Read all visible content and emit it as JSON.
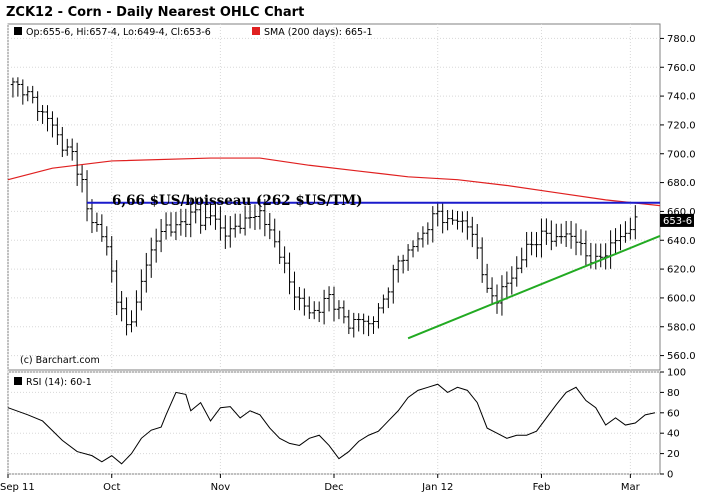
{
  "chart_data": [
    {
      "type": "ohlc",
      "title": "ZCK12 - Corn - Daily Nearest OHLC Chart",
      "legend": {
        "ohlc_label": "Op:655-6, Hi:657-4, Lo:649-4, Cl:653-6",
        "sma_label": "SMA (200 days): 665-1",
        "ohlc_color": "#000000",
        "sma_color": "#e02020"
      },
      "last_price_label": "653-6",
      "watermark": "(c) Barchart.com",
      "annotation": "6,66 $US/boisseau (262 $US/TM)",
      "y_ticks": [
        560,
        580,
        600,
        620,
        640,
        660,
        680,
        700,
        720,
        740,
        760,
        780
      ],
      "ylim": [
        550,
        790
      ],
      "x_tick_labels": [
        "Sep 11",
        "Oct",
        "Nov",
        "Dec",
        "Jan 12",
        "Feb",
        "Mar"
      ],
      "x_tick_days": [
        -1,
        20,
        42,
        65,
        86,
        107,
        125
      ],
      "xlim": [
        -1,
        131
      ],
      "closes": [
        [
          0,
          748
        ],
        [
          2,
          745
        ],
        [
          4,
          737
        ],
        [
          6,
          728
        ],
        [
          8,
          720
        ],
        [
          10,
          705
        ],
        [
          12,
          700
        ],
        [
          14,
          680
        ],
        [
          15,
          660
        ],
        [
          17,
          650
        ],
        [
          19,
          635
        ],
        [
          20,
          618
        ],
        [
          21,
          600
        ],
        [
          23,
          580
        ],
        [
          25,
          595
        ],
        [
          27,
          625
        ],
        [
          29,
          640
        ],
        [
          31,
          650
        ],
        [
          33,
          648
        ],
        [
          35,
          655
        ],
        [
          37,
          660
        ],
        [
          38,
          652
        ],
        [
          40,
          658
        ],
        [
          42,
          648
        ],
        [
          44,
          645
        ],
        [
          46,
          652
        ],
        [
          48,
          655
        ],
        [
          50,
          660
        ],
        [
          52,
          645
        ],
        [
          54,
          632
        ],
        [
          56,
          610
        ],
        [
          58,
          598
        ],
        [
          60,
          590
        ],
        [
          62,
          592
        ],
        [
          64,
          602
        ],
        [
          66,
          590
        ],
        [
          68,
          582
        ],
        [
          70,
          585
        ],
        [
          72,
          582
        ],
        [
          74,
          590
        ],
        [
          76,
          608
        ],
        [
          78,
          625
        ],
        [
          80,
          632
        ],
        [
          82,
          640
        ],
        [
          84,
          650
        ],
        [
          86,
          660
        ],
        [
          88,
          652
        ],
        [
          90,
          655
        ],
        [
          92,
          650
        ],
        [
          94,
          635
        ],
        [
          96,
          603
        ],
        [
          98,
          600
        ],
        [
          100,
          610
        ],
        [
          102,
          620
        ],
        [
          104,
          635
        ],
        [
          106,
          640
        ],
        [
          108,
          645
        ],
        [
          110,
          640
        ],
        [
          112,
          645
        ],
        [
          114,
          640
        ],
        [
          116,
          630
        ],
        [
          118,
          625
        ],
        [
          120,
          632
        ],
        [
          122,
          640
        ],
        [
          124,
          645
        ],
        [
          126,
          653
        ]
      ],
      "sma": {
        "name": "SMA (200 days)",
        "points": [
          [
            -1,
            682
          ],
          [
            8,
            690
          ],
          [
            20,
            695
          ],
          [
            40,
            697
          ],
          [
            50,
            697
          ],
          [
            60,
            692
          ],
          [
            70,
            688
          ],
          [
            80,
            684
          ],
          [
            90,
            682
          ],
          [
            100,
            678
          ],
          [
            110,
            673
          ],
          [
            120,
            668
          ],
          [
            131,
            664
          ]
        ]
      },
      "resistance_line": {
        "value": 666,
        "x_range": [
          15,
          131
        ],
        "color": "#1a1acc"
      },
      "trend_line": {
        "points": [
          [
            80,
            572
          ],
          [
            131,
            643
          ]
        ],
        "color": "#22aa22"
      }
    },
    {
      "type": "line",
      "title": "RSI (14): 60-1",
      "y_ticks": [
        0,
        20,
        40,
        60,
        80,
        100
      ],
      "ylim": [
        0,
        100
      ],
      "series": [
        {
          "name": "RSI (14)",
          "color": "#000000",
          "points": [
            [
              -1,
              65
            ],
            [
              3,
              58
            ],
            [
              6,
              52
            ],
            [
              10,
              33
            ],
            [
              13,
              22
            ],
            [
              16,
              18
            ],
            [
              18,
              12
            ],
            [
              20,
              18
            ],
            [
              22,
              10
            ],
            [
              24,
              20
            ],
            [
              26,
              35
            ],
            [
              28,
              43
            ],
            [
              30,
              46
            ],
            [
              31,
              58
            ],
            [
              33,
              80
            ],
            [
              35,
              78
            ],
            [
              36,
              62
            ],
            [
              38,
              70
            ],
            [
              40,
              52
            ],
            [
              42,
              65
            ],
            [
              44,
              66
            ],
            [
              46,
              55
            ],
            [
              48,
              62
            ],
            [
              50,
              58
            ],
            [
              52,
              45
            ],
            [
              54,
              35
            ],
            [
              56,
              30
            ],
            [
              58,
              28
            ],
            [
              60,
              35
            ],
            [
              62,
              38
            ],
            [
              64,
              28
            ],
            [
              66,
              15
            ],
            [
              68,
              22
            ],
            [
              70,
              32
            ],
            [
              72,
              38
            ],
            [
              74,
              42
            ],
            [
              76,
              52
            ],
            [
              78,
              62
            ],
            [
              80,
              75
            ],
            [
              82,
              82
            ],
            [
              84,
              85
            ],
            [
              86,
              88
            ],
            [
              88,
              80
            ],
            [
              90,
              85
            ],
            [
              92,
              82
            ],
            [
              94,
              70
            ],
            [
              96,
              45
            ],
            [
              98,
              40
            ],
            [
              100,
              35
            ],
            [
              102,
              38
            ],
            [
              104,
              38
            ],
            [
              106,
              42
            ],
            [
              108,
              55
            ],
            [
              110,
              68
            ],
            [
              112,
              80
            ],
            [
              114,
              85
            ],
            [
              116,
              72
            ],
            [
              118,
              65
            ],
            [
              120,
              48
            ],
            [
              122,
              55
            ],
            [
              124,
              48
            ],
            [
              126,
              50
            ],
            [
              128,
              58
            ],
            [
              130,
              60
            ]
          ]
        }
      ]
    }
  ]
}
